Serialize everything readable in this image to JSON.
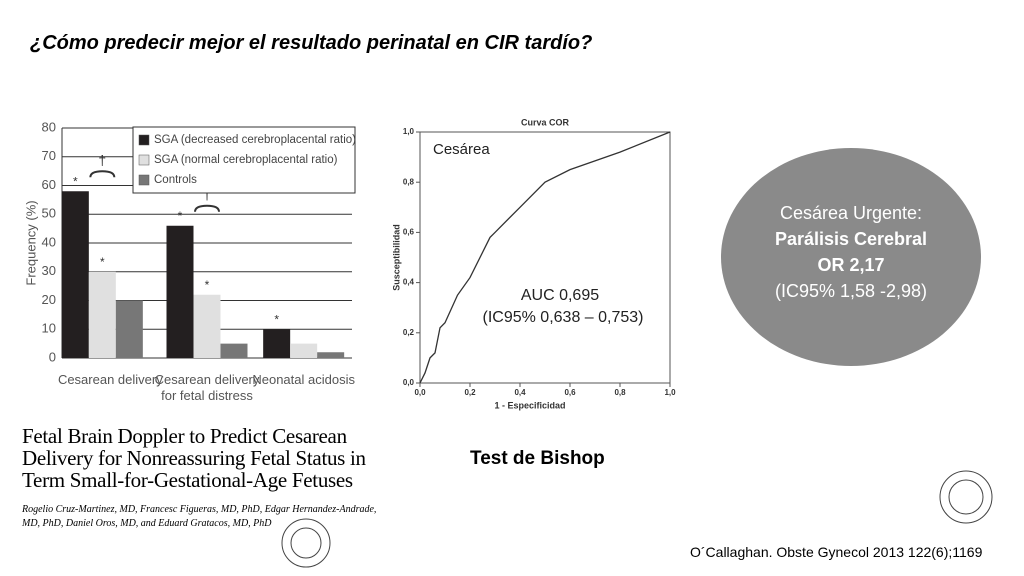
{
  "title": "¿Cómo predecir mejor el resultado perinatal en CIR tardío?",
  "chart_data": [
    {
      "type": "bar",
      "ylabel": "Frequency (%)",
      "categories": [
        "Cesarean delivery",
        "Cesarean delivery for fetal distress",
        "Neonatal acidosis"
      ],
      "series": [
        {
          "name": "SGA (decreased cerebroplacental ratio)",
          "color": "#231f20",
          "values": [
            58,
            46,
            10
          ]
        },
        {
          "name": "SGA (normal cerebroplacental ratio)",
          "color": "#e0e0e0",
          "values": [
            30,
            22,
            5
          ]
        },
        {
          "name": "Controls",
          "color": "#777777",
          "values": [
            20,
            5,
            2
          ]
        }
      ],
      "ylim": [
        0,
        80
      ],
      "yticks": [
        0,
        10,
        20,
        30,
        40,
        50,
        60,
        70,
        80
      ],
      "grid": true,
      "legend": "top-right",
      "annotations": [
        "*",
        "†"
      ]
    },
    {
      "type": "line",
      "title": "Curva COR",
      "xlabel": "1 - Especificidad",
      "ylabel": "Susceptibilidad",
      "x": [
        0,
        0.02,
        0.04,
        0.06,
        0.08,
        0.1,
        0.15,
        0.2,
        0.28,
        0.3,
        0.4,
        0.5,
        0.6,
        0.8,
        1.0
      ],
      "series": [
        {
          "name": "Cesárea",
          "color": "#333333",
          "values": [
            0,
            0.04,
            0.1,
            0.12,
            0.22,
            0.24,
            0.35,
            0.42,
            0.58,
            0.6,
            0.7,
            0.8,
            0.85,
            0.92,
            1.0
          ]
        }
      ],
      "xlim": [
        0,
        1
      ],
      "ylim": [
        0,
        1
      ],
      "xticks": [
        {
          "value": 0,
          "label": "0,0"
        },
        {
          "value": 0.2,
          "label": "0,2"
        },
        {
          "value": 0.4,
          "label": "0,4"
        },
        {
          "value": 0.6,
          "label": "0,6"
        },
        {
          "value": 0.8,
          "label": "0,8"
        },
        {
          "value": 1,
          "label": "1,0"
        }
      ],
      "yticks": [
        {
          "value": 0,
          "label": "0,0"
        },
        {
          "value": 0.2,
          "label": "0,2"
        },
        {
          "value": 0.4,
          "label": "0,4"
        },
        {
          "value": 0.6,
          "label": "0,6"
        },
        {
          "value": 0.8,
          "label": "0,8"
        },
        {
          "value": 1,
          "label": "1,0"
        }
      ],
      "annotations": [
        "AUC 0,695",
        "(IC95% 0,638 – 0,753)"
      ]
    }
  ],
  "paper": {
    "title": "Fetal Brain Doppler to Predict Cesarean Delivery for Nonreassuring Fetal Status in Term Small-for-Gestational-Age Fetuses",
    "authors": "Rogelio Cruz-Martinez, MD, Francesc Figueras, MD, PhD, Edgar Hernandez-Andrade, MD, PhD, Daniel Oros, MD, and Eduard Gratacos, MD, PhD"
  },
  "bishop": "Test de Bishop",
  "callout": [
    "Cesárea Urgente:",
    "Parálisis Cerebral",
    "OR 2,17",
    "(IC95% 1,58 -2,98)"
  ],
  "citation": "O´Callaghan. Obste Gynecol 2013 122(6);1169"
}
